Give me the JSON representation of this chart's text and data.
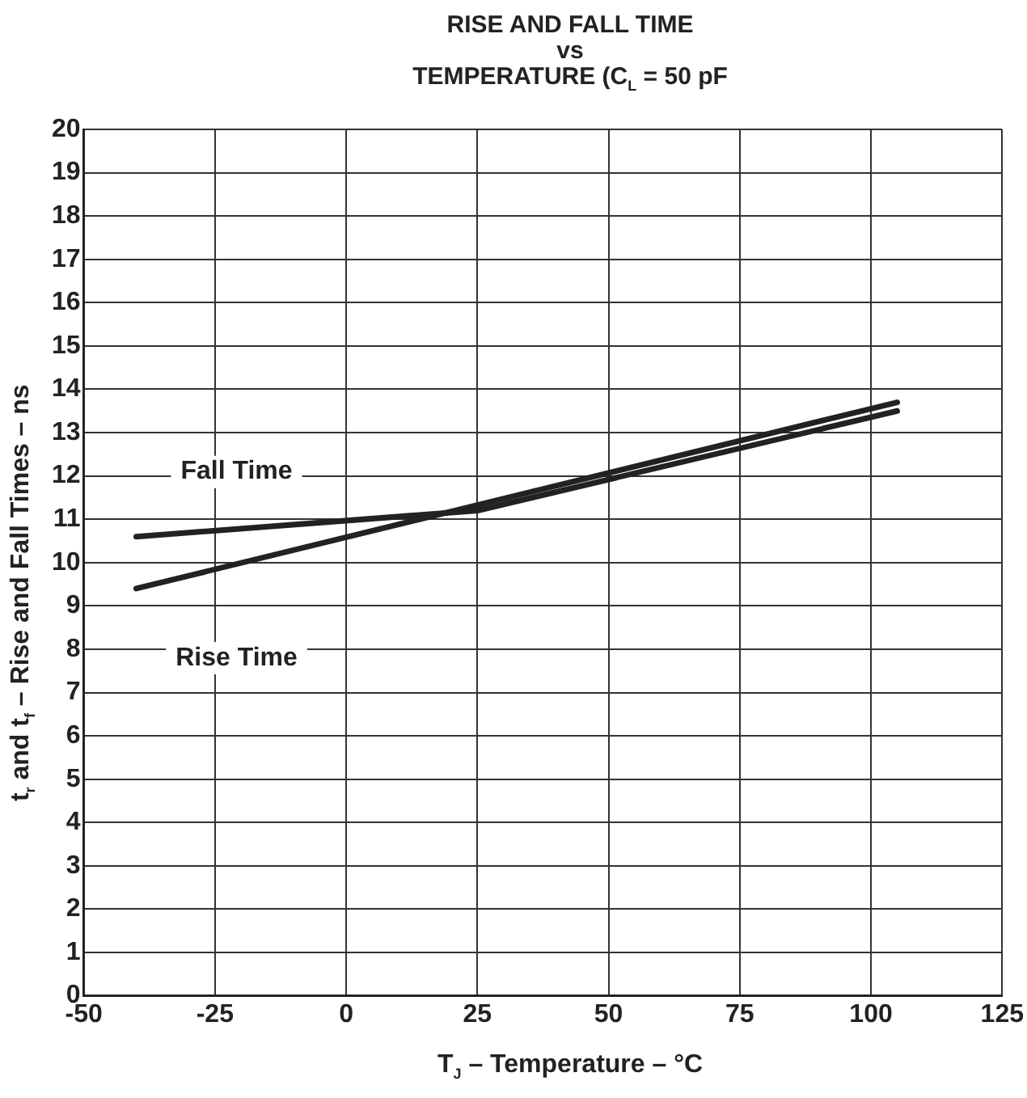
{
  "chart_data": {
    "type": "line",
    "title": "RISE AND FALL TIME\nvs\nTEMPERATURE (C$_{L}$ = 50 pF",
    "xlabel": "T$_{J}$ – Temperature – °C",
    "ylabel": "t$_{r}$ and t$_{f}$ – Rise and Fall Times – ns",
    "series": [
      {
        "name": "Fall Time",
        "color": "#222222",
        "x": [
          -40,
          25,
          105
        ],
        "values": [
          10.6,
          11.2,
          13.5
        ]
      },
      {
        "name": "Rise Time",
        "color": "#222222",
        "x": [
          -40,
          105
        ],
        "values": [
          9.4,
          13.7
        ]
      }
    ],
    "xlim": [
      -50,
      125
    ],
    "xticks": [
      -50,
      -25,
      0,
      25,
      50,
      75,
      100,
      125
    ],
    "ylim": [
      0,
      20
    ],
    "yticks": [
      0,
      1,
      2,
      3,
      4,
      5,
      6,
      7,
      8,
      9,
      10,
      11,
      12,
      13,
      14,
      15,
      16,
      17,
      18,
      19,
      20
    ],
    "grid": true,
    "legend": false,
    "marker": "none",
    "line_style": "solid"
  }
}
